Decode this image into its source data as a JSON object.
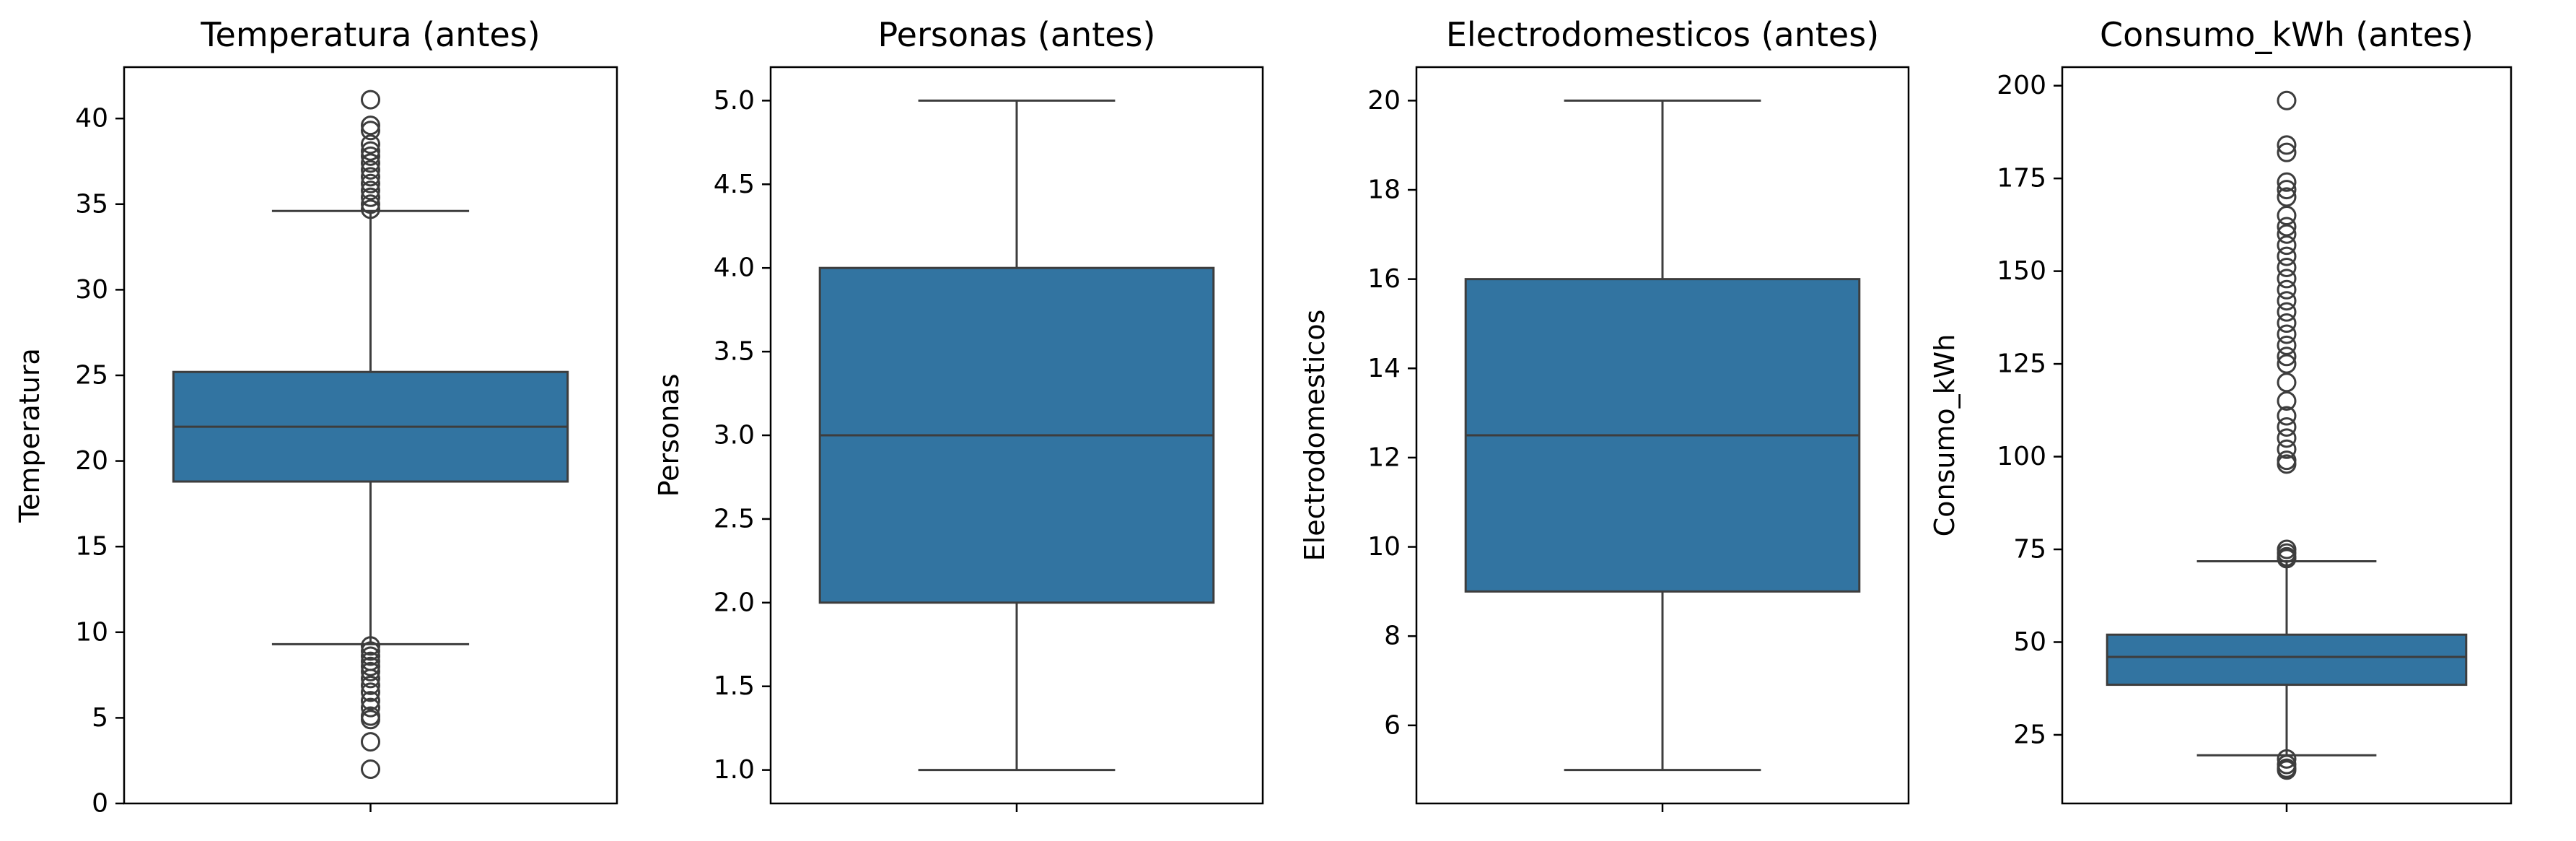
{
  "colors": {
    "box": "#3274a1",
    "edge": "#3d3d3d",
    "axis": "#000000"
  },
  "chart_data": [
    {
      "type": "box",
      "title": "Temperatura (antes)",
      "ylabel": "Temperatura",
      "ylim": [
        0,
        43
      ],
      "yticks": [
        0,
        5,
        10,
        15,
        20,
        25,
        30,
        35,
        40
      ],
      "ytick_labels": [
        "0",
        "5",
        "10",
        "15",
        "20",
        "25",
        "30",
        "35",
        "40"
      ],
      "stats": {
        "whisker_low": 9.3,
        "q1": 18.8,
        "median": 22.0,
        "q3": 25.2,
        "whisker_high": 34.6
      },
      "outliers": [
        41.1,
        39.6,
        39.3,
        38.5,
        38.1,
        37.8,
        37.4,
        37.0,
        36.6,
        36.2,
        35.8,
        35.4,
        35.0,
        34.7,
        9.2,
        8.9,
        8.6,
        8.3,
        8.0,
        7.7,
        7.3,
        6.9,
        6.5,
        6.0,
        5.6,
        5.1,
        4.9,
        3.6,
        2.0
      ]
    },
    {
      "type": "box",
      "title": "Personas (antes)",
      "ylabel": "Personas",
      "ylim": [
        0.8,
        5.2
      ],
      "yticks": [
        1.0,
        1.5,
        2.0,
        2.5,
        3.0,
        3.5,
        4.0,
        4.5,
        5.0
      ],
      "ytick_labels": [
        "1.0",
        "1.5",
        "2.0",
        "2.5",
        "3.0",
        "3.5",
        "4.0",
        "4.5",
        "5.0"
      ],
      "stats": {
        "whisker_low": 1.0,
        "q1": 2.0,
        "median": 3.0,
        "q3": 4.0,
        "whisker_high": 5.0
      },
      "outliers": []
    },
    {
      "type": "box",
      "title": "Electrodomesticos (antes)",
      "ylabel": "Electrodomesticos",
      "ylim": [
        4.25,
        20.75
      ],
      "yticks": [
        6,
        8,
        10,
        12,
        14,
        16,
        18,
        20
      ],
      "ytick_labels": [
        "6",
        "8",
        "10",
        "12",
        "14",
        "16",
        "18",
        "20"
      ],
      "stats": {
        "whisker_low": 5,
        "q1": 9,
        "median": 12.5,
        "q3": 16,
        "whisker_high": 20
      },
      "outliers": []
    },
    {
      "type": "box",
      "title": "Consumo_kWh (antes)",
      "ylabel": "Consumo_kWh",
      "ylim": [
        6.5,
        205
      ],
      "yticks": [
        25,
        50,
        75,
        100,
        125,
        150,
        175,
        200
      ],
      "ytick_labels": [
        "25",
        "50",
        "75",
        "100",
        "125",
        "150",
        "175",
        "200"
      ],
      "stats": {
        "whisker_low": 19.5,
        "q1": 38.5,
        "median": 46.0,
        "q3": 52.0,
        "whisker_high": 71.8
      },
      "outliers": [
        196,
        184,
        182,
        174,
        172,
        170,
        165,
        162,
        160,
        157,
        154,
        151,
        148,
        145,
        142,
        139,
        136,
        133,
        130,
        127,
        125,
        120,
        115,
        111,
        108,
        105,
        102,
        99,
        98,
        75,
        74,
        73,
        72.5,
        18.5,
        17,
        16,
        15.5
      ]
    }
  ]
}
